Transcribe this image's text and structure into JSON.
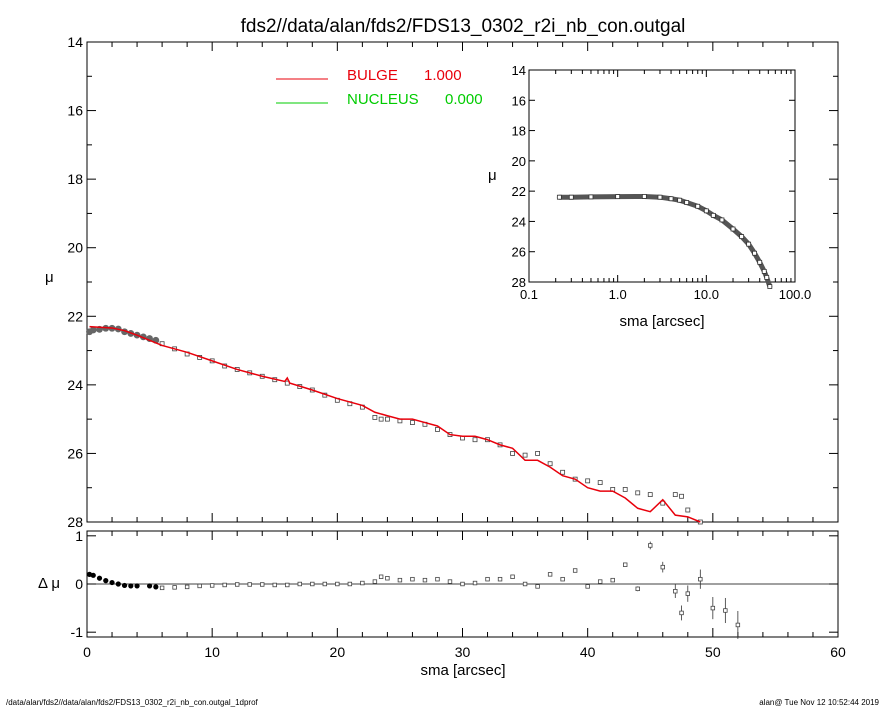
{
  "title": "fds2//data/alan/fds2/FDS13_0302_r2i_nb_con.outgal",
  "footer": {
    "left": "/data/alan/fds2//data/alan/fds2/FDS13_0302_r2i_nb_con.outgal_1dprof",
    "right": "alan@  Tue Nov 12 10:52:44 2019"
  },
  "colors": {
    "bulge": "#e8000b",
    "nucleus": "#00cc00",
    "data": "#666666"
  },
  "chart_data": [
    {
      "type": "scatter",
      "panel": "main",
      "ylabel": "μ",
      "xlim": [
        0,
        60
      ],
      "ylim": [
        28,
        14
      ],
      "y_ticks": [
        14,
        16,
        18,
        20,
        22,
        24,
        26,
        28
      ],
      "legend": [
        {
          "name": "BULGE",
          "value": "1.000",
          "color": "#e8000b"
        },
        {
          "name": "NUCLEUS",
          "value": "0.000",
          "color": "#00cc00"
        }
      ],
      "observed": [
        [
          0.2,
          22.45
        ],
        [
          0.5,
          22.4
        ],
        [
          1,
          22.38
        ],
        [
          1.5,
          22.35
        ],
        [
          2,
          22.35
        ],
        [
          2.5,
          22.37
        ],
        [
          3,
          22.45
        ],
        [
          3.5,
          22.5
        ],
        [
          4,
          22.55
        ],
        [
          4.5,
          22.6
        ],
        [
          5,
          22.65
        ],
        [
          5.5,
          22.7
        ],
        [
          6,
          22.8
        ],
        [
          7,
          22.95
        ],
        [
          8,
          23.1
        ],
        [
          9,
          23.2
        ],
        [
          10,
          23.3
        ],
        [
          11,
          23.45
        ],
        [
          12,
          23.55
        ],
        [
          13,
          23.65
        ],
        [
          14,
          23.75
        ],
        [
          15,
          23.85
        ],
        [
          16,
          23.95
        ],
        [
          17,
          24.05
        ],
        [
          18,
          24.15
        ],
        [
          19,
          24.3
        ],
        [
          20,
          24.45
        ],
        [
          21,
          24.55
        ],
        [
          22,
          24.65
        ],
        [
          23,
          24.95
        ],
        [
          23.5,
          25.0
        ],
        [
          24,
          25.0
        ],
        [
          25,
          25.05
        ],
        [
          26,
          25.1
        ],
        [
          27,
          25.15
        ],
        [
          28,
          25.3
        ],
        [
          29,
          25.45
        ],
        [
          30,
          25.55
        ],
        [
          31,
          25.6
        ],
        [
          32,
          25.6
        ],
        [
          33,
          25.75
        ],
        [
          34,
          26.0
        ],
        [
          35,
          26.05
        ],
        [
          36,
          26.0
        ],
        [
          37,
          26.3
        ],
        [
          38,
          26.55
        ],
        [
          39,
          26.75
        ],
        [
          40,
          26.8
        ],
        [
          41,
          26.85
        ],
        [
          42,
          27.05
        ],
        [
          43,
          27.05
        ],
        [
          44,
          27.15
        ],
        [
          45,
          27.2
        ],
        [
          46,
          27.45
        ],
        [
          47,
          27.2
        ],
        [
          47.5,
          27.25
        ],
        [
          48,
          27.65
        ],
        [
          49,
          28.0
        ]
      ],
      "bulge_model": [
        [
          0.2,
          22.3
        ],
        [
          1,
          22.32
        ],
        [
          2,
          22.34
        ],
        [
          3,
          22.42
        ],
        [
          4,
          22.55
        ],
        [
          5,
          22.7
        ],
        [
          6,
          22.85
        ],
        [
          8,
          23.05
        ],
        [
          10,
          23.3
        ],
        [
          12,
          23.55
        ],
        [
          14,
          23.75
        ],
        [
          15.8,
          23.9
        ],
        [
          16,
          23.8
        ],
        [
          16.2,
          23.95
        ],
        [
          18,
          24.15
        ],
        [
          20,
          24.4
        ],
        [
          22,
          24.6
        ],
        [
          23,
          24.8
        ],
        [
          24,
          24.9
        ],
        [
          25,
          25.0
        ],
        [
          26,
          25.0
        ],
        [
          27,
          25.1
        ],
        [
          28,
          25.2
        ],
        [
          29,
          25.45
        ],
        [
          30,
          25.5
        ],
        [
          31,
          25.5
        ],
        [
          32,
          25.6
        ],
        [
          33,
          25.75
        ],
        [
          34,
          25.85
        ],
        [
          35,
          26.2
        ],
        [
          36,
          26.2
        ],
        [
          37,
          26.4
        ],
        [
          38,
          26.65
        ],
        [
          39,
          26.75
        ],
        [
          40,
          27.0
        ],
        [
          41,
          27.1
        ],
        [
          42,
          27.1
        ],
        [
          43,
          27.3
        ],
        [
          44,
          27.6
        ],
        [
          45,
          27.7
        ],
        [
          46,
          27.35
        ],
        [
          47,
          27.8
        ],
        [
          48,
          27.85
        ],
        [
          49,
          28.0
        ]
      ]
    },
    {
      "type": "scatter",
      "panel": "inset",
      "xlabel": "sma [arcsec]",
      "ylabel": "μ",
      "xscale": "log",
      "xlim": [
        0.1,
        100
      ],
      "ylim": [
        28,
        14
      ],
      "x_tick_labels": [
        "0.1",
        "1.0",
        "10.0",
        "100.0"
      ],
      "y_ticks": [
        14,
        16,
        18,
        20,
        22,
        24,
        26,
        28
      ],
      "observed": [
        [
          0.22,
          22.4
        ],
        [
          0.3,
          22.4
        ],
        [
          0.5,
          22.38
        ],
        [
          1,
          22.36
        ],
        [
          2,
          22.35
        ],
        [
          3,
          22.4
        ],
        [
          4,
          22.5
        ],
        [
          5,
          22.6
        ],
        [
          6,
          22.75
        ],
        [
          8,
          23.0
        ],
        [
          10,
          23.3
        ],
        [
          12,
          23.6
        ],
        [
          15,
          23.9
        ],
        [
          20,
          24.5
        ],
        [
          25,
          25.0
        ],
        [
          30,
          25.5
        ],
        [
          35,
          26.1
        ],
        [
          40,
          26.7
        ],
        [
          45,
          27.3
        ],
        [
          48,
          27.7
        ],
        [
          52,
          28.3
        ]
      ]
    },
    {
      "type": "scatter",
      "panel": "residual",
      "xlabel": "sma [arcsec]",
      "ylabel": "Δ μ",
      "xlim": [
        0,
        60
      ],
      "ylim": [
        -1.1,
        1.1
      ],
      "x_ticks": [
        0,
        10,
        20,
        30,
        40,
        50,
        60
      ],
      "y_ticks": [
        -1,
        0,
        1
      ],
      "residuals": [
        [
          0.2,
          0.2
        ],
        [
          0.5,
          0.18
        ],
        [
          1,
          0.12
        ],
        [
          1.5,
          0.07
        ],
        [
          2,
          0.03
        ],
        [
          2.5,
          0.0
        ],
        [
          3,
          -0.03
        ],
        [
          3.5,
          -0.04
        ],
        [
          4,
          -0.04
        ],
        [
          5,
          -0.04
        ],
        [
          5.5,
          -0.06
        ],
        [
          6,
          -0.08
        ],
        [
          7,
          -0.07
        ],
        [
          8,
          -0.06
        ],
        [
          9,
          -0.04
        ],
        [
          10,
          -0.03
        ],
        [
          11,
          -0.02
        ],
        [
          12,
          -0.01
        ],
        [
          13,
          -0.01
        ],
        [
          14,
          -0.01
        ],
        [
          15,
          -0.02
        ],
        [
          16,
          -0.02
        ],
        [
          17,
          0.0
        ],
        [
          18,
          0.0
        ],
        [
          19,
          0.0
        ],
        [
          20,
          0.0
        ],
        [
          21,
          0.0
        ],
        [
          22,
          0.02
        ],
        [
          23,
          0.05
        ],
        [
          23.5,
          0.15
        ],
        [
          24,
          0.12
        ],
        [
          25,
          0.08
        ],
        [
          26,
          0.1
        ],
        [
          27,
          0.08
        ],
        [
          28,
          0.1
        ],
        [
          29,
          0.05
        ],
        [
          30,
          0.0
        ],
        [
          31,
          0.02
        ],
        [
          32,
          0.1
        ],
        [
          33,
          0.1
        ],
        [
          34,
          0.15
        ],
        [
          35,
          0.0
        ],
        [
          36,
          -0.05
        ],
        [
          37,
          0.2
        ],
        [
          38,
          0.1
        ],
        [
          39,
          0.28
        ],
        [
          40,
          -0.05
        ],
        [
          41,
          0.05
        ],
        [
          42,
          0.08
        ],
        [
          43,
          0.4
        ],
        [
          44,
          -0.1
        ],
        [
          45,
          0.8
        ],
        [
          46,
          0.35
        ],
        [
          47,
          -0.15
        ],
        [
          47.5,
          -0.6
        ],
        [
          48,
          -0.2
        ],
        [
          49,
          0.1
        ],
        [
          50,
          -0.5
        ],
        [
          51,
          -0.55
        ],
        [
          52,
          -0.85
        ]
      ]
    }
  ]
}
